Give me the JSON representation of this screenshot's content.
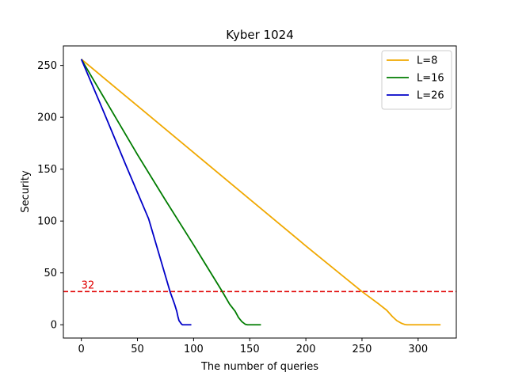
{
  "chart_data": {
    "type": "line",
    "title": "Kyber 1024",
    "xlabel": "The number of queries",
    "ylabel": "Security",
    "xlim": [
      -16,
      334
    ],
    "ylim": [
      -12.8,
      268.8
    ],
    "xticks": [
      0,
      50,
      100,
      150,
      200,
      250,
      300
    ],
    "yticks": [
      0,
      50,
      100,
      150,
      200,
      250
    ],
    "grid": false,
    "legend_position": "top-right",
    "series": [
      {
        "name": "L=8",
        "color": "#f0a800",
        "points": [
          [
            0,
            256
          ],
          [
            50,
            211
          ],
          [
            100,
            166
          ],
          [
            150,
            121
          ],
          [
            200,
            76
          ],
          [
            250,
            32
          ],
          [
            265,
            20
          ],
          [
            272,
            14
          ],
          [
            277,
            8
          ],
          [
            281,
            4
          ],
          [
            285,
            1.5
          ],
          [
            288,
            0.3
          ],
          [
            290,
            0
          ],
          [
            320,
            0
          ]
        ]
      },
      {
        "name": "L=16",
        "color": "#007c00",
        "points": [
          [
            0,
            256
          ],
          [
            25,
            210
          ],
          [
            50,
            164
          ],
          [
            75,
            120
          ],
          [
            100,
            77
          ],
          [
            125,
            33
          ],
          [
            132,
            20
          ],
          [
            137,
            13
          ],
          [
            140,
            7
          ],
          [
            143,
            3
          ],
          [
            146,
            0.5
          ],
          [
            148,
            0
          ],
          [
            160,
            0
          ]
        ]
      },
      {
        "name": "L=26",
        "color": "#0000c8",
        "points": [
          [
            0,
            256
          ],
          [
            20,
            205
          ],
          [
            40,
            153
          ],
          [
            60,
            102
          ],
          [
            79,
            32
          ],
          [
            83,
            20
          ],
          [
            85,
            13
          ],
          [
            86,
            8
          ],
          [
            87,
            4
          ],
          [
            89,
            1
          ],
          [
            90,
            0
          ],
          [
            98,
            0
          ]
        ]
      }
    ],
    "reference_line": {
      "y": 32,
      "label": "32",
      "color": "#e00000",
      "style": "dashed"
    }
  }
}
